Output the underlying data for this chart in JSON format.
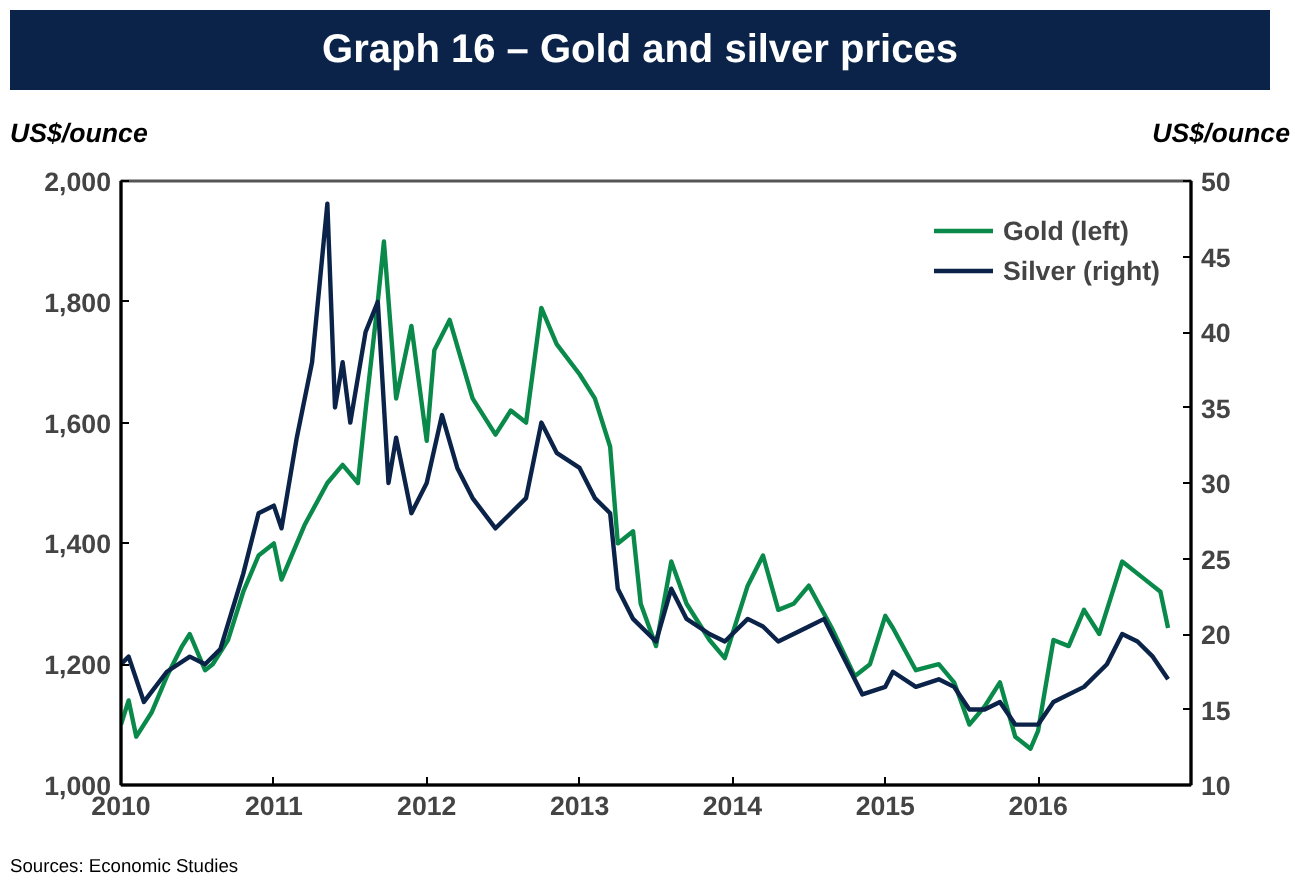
{
  "chart_data": {
    "type": "line",
    "title": "Graph 16 – Gold and silver prices",
    "ylabel": "US$/ounce",
    "y2label": "US$/ounce",
    "annotations": [
      "Sources: Economic Studies"
    ],
    "xlim": [
      2010,
      2017
    ],
    "xticks": [
      2010,
      2011,
      2012,
      2013,
      2014,
      2015,
      2016
    ],
    "ylim": [
      1000,
      2000
    ],
    "yticks": [
      {
        "value": 1000,
        "label": "1,000"
      },
      {
        "value": 1200,
        "label": "1,200"
      },
      {
        "value": 1400,
        "label": "1,400"
      },
      {
        "value": 1600,
        "label": "1,600"
      },
      {
        "value": 1800,
        "label": "1,800"
      },
      {
        "value": 2000,
        "label": "2,000"
      }
    ],
    "y2lim": [
      10,
      50
    ],
    "y2ticks": [
      10,
      15,
      20,
      25,
      30,
      35,
      40,
      45,
      50
    ],
    "grid": false,
    "legend": "top right",
    "marker": "none",
    "line_style": "solid",
    "series": [
      {
        "name": "Gold (left)",
        "color": "#0a8a4a",
        "x": [
          2010.0,
          2010.05,
          2010.1,
          2010.2,
          2010.3,
          2010.4,
          2010.45,
          2010.55,
          2010.6,
          2010.7,
          2010.8,
          2010.9,
          2011.0,
          2011.05,
          2011.2,
          2011.35,
          2011.45,
          2011.55,
          2011.6,
          2011.68,
          2011.72,
          2011.8,
          2011.9,
          2012.0,
          2012.05,
          2012.15,
          2012.3,
          2012.45,
          2012.55,
          2012.65,
          2012.75,
          2012.85,
          2013.0,
          2013.1,
          2013.2,
          2013.25,
          2013.35,
          2013.4,
          2013.5,
          2013.6,
          2013.7,
          2013.85,
          2013.95,
          2014.1,
          2014.2,
          2014.3,
          2014.4,
          2014.5,
          2014.65,
          2014.8,
          2014.9,
          2015.0,
          2015.05,
          2015.2,
          2015.35,
          2015.45,
          2015.55,
          2015.65,
          2015.75,
          2015.85,
          2015.95,
          2016.0,
          2016.1,
          2016.2,
          2016.3,
          2016.4,
          2016.5,
          2016.55,
          2016.7,
          2016.8,
          2016.85
        ],
        "values": [
          1100,
          1140,
          1080,
          1120,
          1180,
          1230,
          1250,
          1190,
          1200,
          1240,
          1320,
          1380,
          1400,
          1340,
          1430,
          1500,
          1530,
          1500,
          1620,
          1800,
          1900,
          1640,
          1760,
          1570,
          1720,
          1770,
          1640,
          1580,
          1620,
          1600,
          1790,
          1730,
          1680,
          1640,
          1560,
          1400,
          1420,
          1300,
          1230,
          1370,
          1300,
          1240,
          1210,
          1330,
          1380,
          1290,
          1300,
          1330,
          1260,
          1180,
          1200,
          1280,
          1260,
          1190,
          1200,
          1170,
          1100,
          1130,
          1170,
          1080,
          1060,
          1090,
          1240,
          1230,
          1290,
          1250,
          1330,
          1370,
          1340,
          1320,
          1260
        ]
      },
      {
        "name": "Silver (right)",
        "color": "#0b2348",
        "axis": "y2",
        "x": [
          2010.0,
          2010.05,
          2010.15,
          2010.3,
          2010.45,
          2010.55,
          2010.65,
          2010.8,
          2010.9,
          2011.0,
          2011.05,
          2011.15,
          2011.25,
          2011.35,
          2011.4,
          2011.45,
          2011.5,
          2011.6,
          2011.68,
          2011.75,
          2011.8,
          2011.9,
          2012.0,
          2012.1,
          2012.2,
          2012.3,
          2012.45,
          2012.55,
          2012.65,
          2012.75,
          2012.85,
          2013.0,
          2013.1,
          2013.2,
          2013.25,
          2013.35,
          2013.5,
          2013.6,
          2013.7,
          2013.85,
          2013.95,
          2014.1,
          2014.2,
          2014.3,
          2014.5,
          2014.6,
          2014.75,
          2014.85,
          2015.0,
          2015.05,
          2015.2,
          2015.35,
          2015.45,
          2015.55,
          2015.65,
          2015.75,
          2015.85,
          2016.0,
          2016.1,
          2016.3,
          2016.45,
          2016.55,
          2016.65,
          2016.75,
          2016.85
        ],
        "values": [
          18,
          18.5,
          15.5,
          17.5,
          18.5,
          18,
          19,
          24,
          28,
          28.5,
          27,
          33,
          38,
          48.5,
          35,
          38,
          34,
          40,
          42,
          30,
          33,
          28,
          30,
          34.5,
          31,
          29,
          27,
          28,
          29,
          34,
          32,
          31,
          29,
          28,
          23,
          21,
          19.5,
          23,
          21,
          20,
          19.5,
          21,
          20.5,
          19.5,
          20.5,
          21,
          18,
          16,
          16.5,
          17.5,
          16.5,
          17,
          16.5,
          15,
          15,
          15.5,
          14,
          14,
          15.5,
          16.5,
          18,
          20,
          19.5,
          18.5,
          17
        ]
      }
    ]
  }
}
